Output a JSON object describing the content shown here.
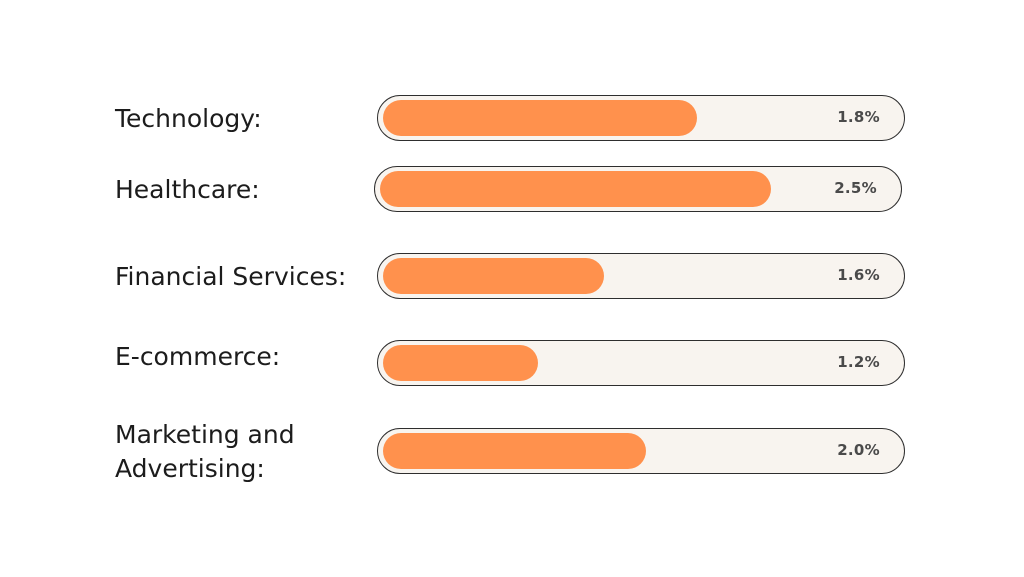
{
  "chart_data": {
    "type": "bar",
    "orientation": "horizontal",
    "categories": [
      "Technology:",
      "Healthcare:",
      "Financial Services:",
      "E-commerce:",
      "Marketing and\nAdvertising:"
    ],
    "values": [
      1.8,
      2.5,
      1.6,
      1.2,
      2.0
    ],
    "value_labels": [
      "1.8%",
      "2.5%",
      "1.6%",
      "1.2%",
      "2.0%"
    ],
    "fill_fraction": [
      0.61,
      0.76,
      0.43,
      0.3,
      0.51
    ],
    "colors": {
      "fill": "#ff914d",
      "track": "#f8f4ef",
      "track_border": "#2e2e2e"
    },
    "title": "",
    "xlabel": "",
    "ylabel": ""
  }
}
